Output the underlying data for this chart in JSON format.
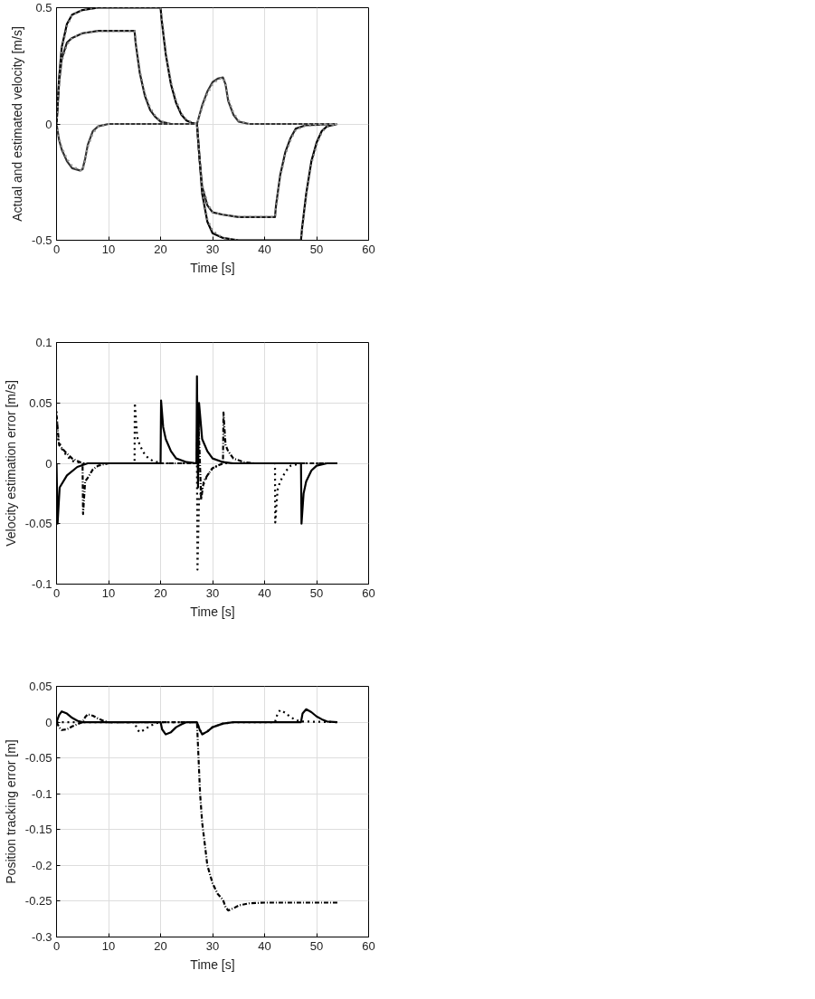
{
  "chart_data": [
    {
      "type": "line",
      "xlabel": "Time [s]",
      "ylabel": "Actual and estimated velocity [m/s]",
      "xlim": [
        0,
        60
      ],
      "ylim": [
        -0.5,
        0.5
      ],
      "xticks": [
        0,
        10,
        20,
        30,
        40,
        50,
        60
      ],
      "yticks": [
        -0.5,
        0,
        0.5
      ],
      "grid": true,
      "series": [
        {
          "color": "#000000",
          "line_style": "solid",
          "x": [
            0,
            0.5,
            1,
            2,
            3,
            5,
            8,
            20,
            20.2,
            21,
            22,
            23,
            24,
            25,
            26,
            27,
            27.5,
            28,
            29,
            30,
            32,
            35,
            47,
            47.2,
            48,
            49,
            50,
            51,
            52,
            54
          ],
          "values": [
            0,
            0.2,
            0.33,
            0.43,
            0.47,
            0.49,
            0.5,
            0.5,
            0.45,
            0.3,
            0.17,
            0.09,
            0.04,
            0.015,
            0.005,
            0,
            -0.15,
            -0.3,
            -0.42,
            -0.47,
            -0.49,
            -0.5,
            -0.5,
            -0.45,
            -0.3,
            -0.16,
            -0.08,
            -0.03,
            -0.01,
            0
          ]
        },
        {
          "color": "#1a1a1a",
          "line_style": "solid",
          "x": [
            0,
            0.5,
            1,
            2,
            3,
            5,
            8,
            15,
            15.2,
            16,
            17,
            18,
            19,
            20,
            22,
            27,
            27.5,
            28,
            29,
            30,
            32,
            35,
            42,
            42.2,
            43,
            44,
            45,
            46,
            48,
            54
          ],
          "values": [
            0,
            0.18,
            0.28,
            0.35,
            0.37,
            0.39,
            0.4,
            0.4,
            0.35,
            0.22,
            0.12,
            0.06,
            0.03,
            0.01,
            0,
            0,
            -0.15,
            -0.27,
            -0.35,
            -0.38,
            -0.39,
            -0.4,
            -0.4,
            -0.35,
            -0.22,
            -0.12,
            -0.06,
            -0.02,
            -0.005,
            0
          ]
        },
        {
          "color": "#333333",
          "line_style": "solid",
          "x": [
            0,
            0.5,
            1,
            2,
            3,
            4.5,
            5,
            5.5,
            6,
            7,
            8,
            10,
            27,
            28,
            29,
            30,
            31,
            32,
            32.5,
            33,
            34,
            35,
            37,
            54
          ],
          "values": [
            0,
            -0.07,
            -0.11,
            -0.16,
            -0.19,
            -0.2,
            -0.195,
            -0.15,
            -0.09,
            -0.03,
            -0.01,
            0,
            0,
            0.08,
            0.14,
            0.18,
            0.195,
            0.2,
            0.17,
            0.1,
            0.04,
            0.01,
            0,
            0
          ]
        },
        {
          "color": "#808080",
          "line_style": "dotted",
          "x": [
            0,
            0.5,
            1,
            2,
            3,
            5,
            8,
            20,
            20.2,
            21,
            22,
            23,
            24,
            25,
            26,
            27,
            27.5,
            28,
            29,
            30,
            32,
            35,
            47,
            47.2,
            48,
            49,
            50,
            51,
            52,
            54
          ],
          "values": [
            0,
            0.19,
            0.32,
            0.42,
            0.47,
            0.49,
            0.5,
            0.5,
            0.46,
            0.31,
            0.18,
            0.1,
            0.045,
            0.018,
            0.006,
            0,
            -0.14,
            -0.29,
            -0.41,
            -0.46,
            -0.49,
            -0.5,
            -0.5,
            -0.46,
            -0.31,
            -0.17,
            -0.09,
            -0.035,
            -0.012,
            0
          ]
        },
        {
          "color": "#8c8c8c",
          "line_style": "dotted",
          "x": [
            0,
            0.5,
            1,
            2,
            3,
            5,
            8,
            15,
            15.2,
            16,
            17,
            18,
            19,
            20,
            22,
            27,
            27.5,
            28,
            29,
            30,
            32,
            35,
            42,
            42.2,
            43,
            44,
            45,
            46,
            48,
            54
          ],
          "values": [
            0,
            0.17,
            0.27,
            0.34,
            0.37,
            0.39,
            0.4,
            0.4,
            0.36,
            0.23,
            0.13,
            0.07,
            0.035,
            0.012,
            0,
            0,
            -0.14,
            -0.26,
            -0.34,
            -0.38,
            -0.39,
            -0.4,
            -0.4,
            -0.36,
            -0.23,
            -0.13,
            -0.07,
            -0.025,
            -0.006,
            0
          ]
        },
        {
          "color": "#999999",
          "line_style": "dotted",
          "x": [
            0,
            0.5,
            1,
            2,
            3,
            4.5,
            5,
            5.5,
            6,
            7,
            8,
            10,
            27,
            28,
            29,
            30,
            31,
            32,
            32.5,
            33,
            34,
            35,
            37,
            54
          ],
          "values": [
            0,
            -0.06,
            -0.1,
            -0.15,
            -0.18,
            -0.2,
            -0.2,
            -0.16,
            -0.1,
            -0.04,
            -0.012,
            0,
            0,
            0.07,
            0.13,
            0.17,
            0.19,
            0.2,
            0.18,
            0.11,
            0.05,
            0.015,
            0,
            0
          ]
        }
      ]
    },
    {
      "type": "line",
      "xlabel": "Time [s]",
      "ylabel": "Velocity estimation error [m/s]",
      "xlim": [
        0,
        60
      ],
      "ylim": [
        -0.1,
        0.1
      ],
      "xticks": [
        0,
        10,
        20,
        30,
        40,
        50,
        60
      ],
      "yticks": [
        -0.1,
        -0.05,
        0,
        0.05,
        0.1
      ],
      "grid": true,
      "series": [
        {
          "color": "#000000",
          "line_style": "solid",
          "x": [
            0,
            0.2,
            0.6,
            2,
            4,
            6,
            20,
            20.1,
            20.5,
            21,
            22,
            23,
            25,
            26.9,
            27,
            27.2,
            27.4,
            28,
            29,
            30,
            32,
            34,
            47,
            47.1,
            47.5,
            48,
            49,
            50,
            52,
            54
          ],
          "values": [
            0,
            -0.05,
            -0.02,
            -0.01,
            -0.003,
            0,
            0,
            0.052,
            0.03,
            0.02,
            0.01,
            0.004,
            0.001,
            0,
            0.072,
            -0.02,
            0.05,
            0.02,
            0.01,
            0.004,
            0.001,
            0,
            0,
            -0.05,
            -0.025,
            -0.015,
            -0.006,
            -0.002,
            0,
            0
          ]
        },
        {
          "color": "#000000",
          "line_style": "dotted",
          "x": [
            0,
            0.3,
            1,
            2,
            3,
            5,
            15,
            15.05,
            15.5,
            16,
            17,
            18,
            20,
            27,
            27.1,
            27.4,
            28,
            29,
            30,
            32,
            42,
            42.05,
            42.5,
            43,
            44,
            45,
            47,
            54
          ],
          "values": [
            0.043,
            0.02,
            0.012,
            0.006,
            0.002,
            0,
            0,
            0.05,
            0.022,
            0.015,
            0.007,
            0.003,
            0,
            0,
            -0.088,
            -0.03,
            -0.02,
            -0.01,
            -0.004,
            0,
            0,
            -0.049,
            -0.022,
            -0.015,
            -0.007,
            -0.002,
            0,
            0
          ]
        },
        {
          "color": "#000000",
          "line_style": "dashed",
          "x": [
            0,
            0.5,
            2,
            3,
            5,
            5.1,
            5.5,
            6,
            7,
            8,
            10,
            27,
            27.1,
            27.5,
            27.8,
            28.3,
            29,
            30,
            32,
            32.1,
            32.5,
            33,
            34,
            36,
            38,
            54
          ],
          "values": [
            0.04,
            0.015,
            0.008,
            0.004,
            0,
            -0.042,
            -0.015,
            -0.012,
            -0.005,
            -0.002,
            0,
            0,
            0.05,
            0.01,
            -0.03,
            -0.015,
            -0.01,
            -0.004,
            0,
            0.042,
            0.015,
            0.01,
            0.004,
            0.001,
            0,
            0
          ]
        }
      ]
    },
    {
      "type": "line",
      "xlabel": "Time [s]",
      "ylabel": "Position tracking error [m]",
      "xlim": [
        0,
        60
      ],
      "ylim": [
        -0.3,
        0.05
      ],
      "xticks": [
        0,
        10,
        20,
        30,
        40,
        50,
        60
      ],
      "yticks": [
        -0.3,
        -0.25,
        -0.2,
        -0.15,
        -0.1,
        -0.05,
        0,
        0.05
      ],
      "grid": true,
      "series": [
        {
          "color": "#000000",
          "line_style": "solid",
          "x": [
            0,
            0.5,
            1,
            2,
            3,
            4,
            5,
            20,
            20.3,
            21,
            22,
            23,
            24,
            25,
            27,
            27.5,
            28,
            29,
            30,
            32,
            34,
            47,
            47.3,
            48,
            49,
            50,
            51,
            52,
            54
          ],
          "values": [
            0,
            0.01,
            0.015,
            0.012,
            0.006,
            0.002,
            0,
            0,
            -0.01,
            -0.017,
            -0.014,
            -0.007,
            -0.003,
            0,
            0,
            -0.01,
            -0.017,
            -0.013,
            -0.007,
            -0.002,
            0,
            0,
            0.012,
            0.018,
            0.014,
            0.008,
            0.004,
            0.001,
            0
          ]
        },
        {
          "color": "#000000",
          "line_style": "dotted",
          "x": [
            0,
            15,
            15.5,
            16,
            17,
            18,
            19,
            20,
            27,
            27.5,
            28,
            29,
            30,
            32,
            34,
            42,
            42.5,
            43,
            44,
            45,
            46,
            47,
            54
          ],
          "values": [
            0,
            0,
            -0.01,
            -0.014,
            -0.01,
            -0.005,
            -0.002,
            0,
            0,
            -0.01,
            -0.017,
            -0.013,
            -0.007,
            -0.002,
            0,
            0,
            0.012,
            0.017,
            0.013,
            0.007,
            0.003,
            0.001,
            0
          ]
        },
        {
          "color": "#000000",
          "line_style": "dashed",
          "x": [
            0,
            0.5,
            1,
            2,
            3,
            4,
            5,
            5.5,
            6,
            7,
            8,
            9,
            10,
            27,
            27.3,
            27.6,
            28,
            28.5,
            29,
            30,
            31,
            32,
            32.5,
            33,
            34,
            35,
            37,
            40,
            45,
            54
          ],
          "values": [
            0,
            -0.007,
            -0.011,
            -0.01,
            -0.006,
            -0.003,
            0,
            0.007,
            0.011,
            0.009,
            0.005,
            0.002,
            0,
            0,
            -0.05,
            -0.1,
            -0.14,
            -0.17,
            -0.2,
            -0.225,
            -0.24,
            -0.248,
            -0.258,
            -0.263,
            -0.26,
            -0.256,
            -0.253,
            -0.252,
            -0.252,
            -0.252
          ]
        }
      ]
    }
  ]
}
